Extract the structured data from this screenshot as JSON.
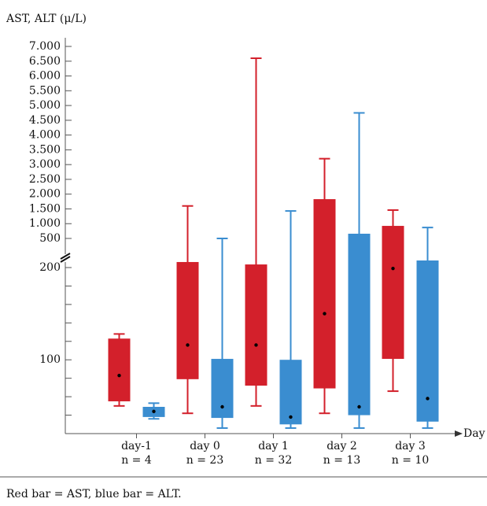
{
  "chart_data": {
    "type": "box",
    "y_label": "AST, ALT (μ/L)",
    "x_label": "Day",
    "categories": [
      "day-1",
      "day 0",
      "day 1",
      "day 2",
      "day 3"
    ],
    "n_labels": [
      "n = 4",
      "n = 23",
      "n = 32",
      "n = 13",
      "n = 10"
    ],
    "ylim": [
      20,
      7000
    ],
    "axis_break": [
      200,
      500
    ],
    "yticks": [
      100,
      200,
      500,
      {
        "value": 1000,
        "label": "1.000"
      },
      {
        "value": 1500,
        "label": "1.500"
      },
      {
        "value": 2000,
        "label": "2.000"
      },
      {
        "value": 2500,
        "label": "2.500"
      },
      {
        "value": 3000,
        "label": "3.000"
      },
      {
        "value": 3500,
        "label": "3.500"
      },
      {
        "value": 4000,
        "label": "4.000"
      },
      {
        "value": 4500,
        "label": "4.500"
      },
      {
        "value": 5000,
        "label": "5.000"
      },
      {
        "value": 5500,
        "label": "5.500"
      },
      {
        "value": 6000,
        "label": "6.000"
      },
      {
        "value": 6500,
        "label": "6.500"
      },
      {
        "value": 7000,
        "label": "7.000"
      }
    ],
    "yminor_ticks": [
      20,
      40,
      60,
      80,
      120,
      140,
      160,
      180
    ],
    "series": [
      {
        "color": "#d3202b",
        "boxes": [
          {
            "min": 50,
            "q1": 55,
            "median": 83,
            "q3": 123,
            "max": 128
          },
          {
            "min": 42,
            "q1": 79,
            "median": 116,
            "q3": 257,
            "max": 1600
          },
          {
            "min": 50,
            "q1": 72,
            "median": 116,
            "q3": 232,
            "max": 6600
          },
          {
            "min": 42,
            "q1": 69,
            "median": 150,
            "q3": 1830,
            "max": 3200
          },
          {
            "min": 66,
            "q1": 101,
            "median": 199,
            "q3": 925,
            "max": 1460
          }
        ]
      },
      {
        "color": "#3a8dd0",
        "boxes": [
          {
            "min": 36,
            "q1": 38,
            "median": 44,
            "q3": 49,
            "max": 53
          },
          {
            "min": 26,
            "q1": 37,
            "median": 49,
            "q3": 101,
            "max": 500
          },
          {
            "min": 26,
            "q1": 30,
            "median": 38,
            "q3": 100,
            "max": 1430
          },
          {
            "min": 26,
            "q1": 40,
            "median": 49,
            "q3": 660,
            "max": 4750
          },
          {
            "min": 26,
            "q1": 33,
            "median": 58,
            "q3": 273,
            "max": 870
          }
        ]
      }
    ],
    "footnote": "Red bar = AST, blue bar = ALT."
  }
}
